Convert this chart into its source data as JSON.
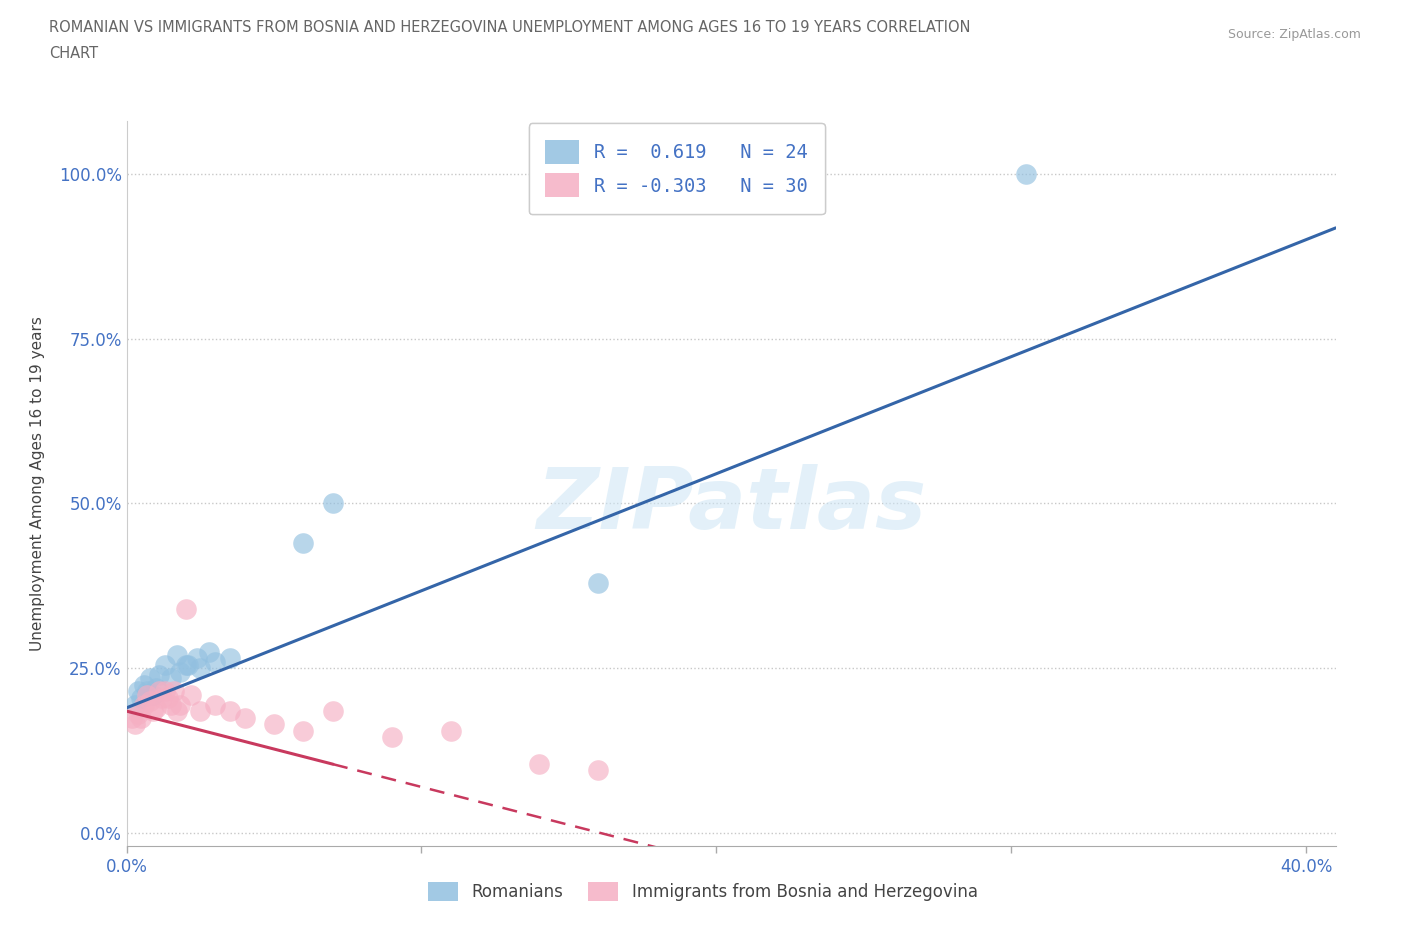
{
  "title_line1": "ROMANIAN VS IMMIGRANTS FROM BOSNIA AND HERZEGOVINA UNEMPLOYMENT AMONG AGES 16 TO 19 YEARS CORRELATION",
  "title_line2": "CHART",
  "source": "Source: ZipAtlas.com",
  "ylabel": "Unemployment Among Ages 16 to 19 years",
  "xlim": [
    0.0,
    0.41
  ],
  "ylim": [
    -0.02,
    1.08
  ],
  "ytick_vals": [
    0.0,
    0.25,
    0.5,
    0.75,
    1.0
  ],
  "ytick_labels": [
    "0.0%",
    "25.0%",
    "50.0%",
    "75.0%",
    "100.0%"
  ],
  "xtick_vals": [
    0.0,
    0.1,
    0.2,
    0.3,
    0.4
  ],
  "xtick_labels": [
    "0.0%",
    "",
    "",
    "",
    "40.0%"
  ],
  "romanians_R": "0.619",
  "romanians_N": "24",
  "bosnia_R": "-0.303",
  "bosnia_N": "30",
  "blue_color": "#92c0e0",
  "pink_color": "#f5afc3",
  "trend_blue": "#3465a8",
  "trend_pink": "#c8395e",
  "watermark": "ZIPatlas",
  "blue_scatter_x": [
    0.003,
    0.004,
    0.005,
    0.006,
    0.007,
    0.008,
    0.009,
    0.01,
    0.011,
    0.013,
    0.015,
    0.017,
    0.02,
    0.024,
    0.028,
    0.035,
    0.018,
    0.021,
    0.025,
    0.03,
    0.06,
    0.07,
    0.16,
    0.305
  ],
  "blue_scatter_y": [
    0.195,
    0.215,
    0.205,
    0.225,
    0.215,
    0.235,
    0.21,
    0.22,
    0.24,
    0.255,
    0.235,
    0.27,
    0.255,
    0.265,
    0.275,
    0.265,
    0.245,
    0.255,
    0.25,
    0.26,
    0.44,
    0.5,
    0.38,
    1.0
  ],
  "pink_scatter_x": [
    0.002,
    0.003,
    0.004,
    0.005,
    0.006,
    0.007,
    0.008,
    0.009,
    0.01,
    0.011,
    0.012,
    0.013,
    0.014,
    0.015,
    0.016,
    0.017,
    0.018,
    0.02,
    0.022,
    0.025,
    0.03,
    0.035,
    0.04,
    0.05,
    0.06,
    0.07,
    0.09,
    0.11,
    0.14,
    0.16
  ],
  "pink_scatter_y": [
    0.175,
    0.165,
    0.18,
    0.175,
    0.195,
    0.21,
    0.2,
    0.185,
    0.19,
    0.215,
    0.205,
    0.215,
    0.205,
    0.195,
    0.215,
    0.185,
    0.195,
    0.34,
    0.21,
    0.185,
    0.195,
    0.185,
    0.175,
    0.165,
    0.155,
    0.185,
    0.145,
    0.155,
    0.105,
    0.095
  ]
}
